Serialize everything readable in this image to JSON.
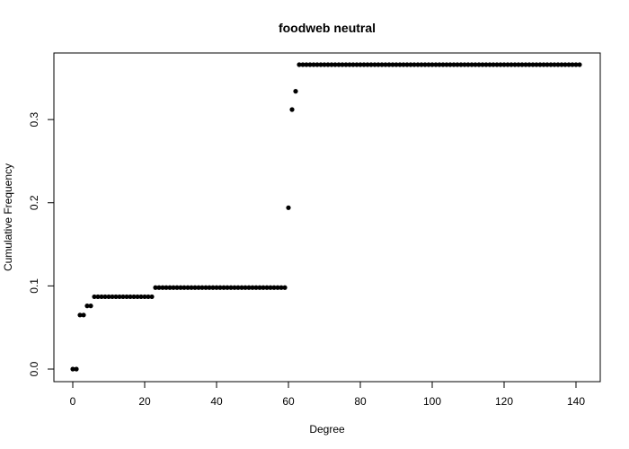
{
  "chart_data": {
    "type": "scatter",
    "title": "foodweb neutral",
    "xlabel": "Degree",
    "ylabel": "Cumulative Frequency",
    "xlim": [
      0,
      141
    ],
    "ylim": [
      0,
      0.366
    ],
    "x_ticks": [
      0,
      20,
      40,
      60,
      80,
      100,
      120,
      140
    ],
    "x_tick_labels": [
      "0",
      "20",
      "40",
      "60",
      "80",
      "100",
      "120",
      "140"
    ],
    "y_ticks": [
      0.0,
      0.1,
      0.2,
      0.3
    ],
    "y_tick_labels": [
      "0.0",
      "0.1",
      "0.2",
      "0.3"
    ],
    "grid": false,
    "point_color": "#000000",
    "series": [
      {
        "x": [
          0,
          1,
          2,
          3,
          4,
          5,
          6,
          7,
          8,
          9,
          10,
          11,
          12,
          13,
          14,
          15,
          16,
          17,
          18,
          19,
          20,
          21,
          22,
          23,
          24,
          25,
          26,
          27,
          28,
          29,
          30,
          31,
          32,
          33,
          34,
          35,
          36,
          37,
          38,
          39,
          40,
          41,
          42,
          43,
          44,
          45,
          46,
          47,
          48,
          49,
          50,
          51,
          52,
          53,
          54,
          55,
          56,
          57,
          58,
          59,
          60,
          61,
          62,
          63,
          64,
          65,
          66,
          67,
          68,
          69,
          70,
          71,
          72,
          73,
          74,
          75,
          76,
          77,
          78,
          79,
          80,
          81,
          82,
          83,
          84,
          85,
          86,
          87,
          88,
          89,
          90,
          91,
          92,
          93,
          94,
          95,
          96,
          97,
          98,
          99,
          100,
          101,
          102,
          103,
          104,
          105,
          106,
          107,
          108,
          109,
          110,
          111,
          112,
          113,
          114,
          115,
          116,
          117,
          118,
          119,
          120,
          121,
          122,
          123,
          124,
          125,
          126,
          127,
          128,
          129,
          130,
          131,
          132,
          133,
          134,
          135,
          136,
          137,
          138,
          139,
          140,
          141
        ],
        "y": [
          0,
          0,
          0.065,
          0.065,
          0.076,
          0.076,
          0.087,
          0.087,
          0.087,
          0.087,
          0.087,
          0.087,
          0.087,
          0.087,
          0.087,
          0.087,
          0.087,
          0.087,
          0.087,
          0.087,
          0.087,
          0.087,
          0.087,
          0.098,
          0.098,
          0.098,
          0.098,
          0.098,
          0.098,
          0.098,
          0.098,
          0.098,
          0.098,
          0.098,
          0.098,
          0.098,
          0.098,
          0.098,
          0.098,
          0.098,
          0.098,
          0.098,
          0.098,
          0.098,
          0.098,
          0.098,
          0.098,
          0.098,
          0.098,
          0.098,
          0.098,
          0.098,
          0.098,
          0.098,
          0.098,
          0.098,
          0.098,
          0.098,
          0.098,
          0.098,
          0.194,
          0.312,
          0.334,
          0.366,
          0.366,
          0.366,
          0.366,
          0.366,
          0.366,
          0.366,
          0.366,
          0.366,
          0.366,
          0.366,
          0.366,
          0.366,
          0.366,
          0.366,
          0.366,
          0.366,
          0.366,
          0.366,
          0.366,
          0.366,
          0.366,
          0.366,
          0.366,
          0.366,
          0.366,
          0.366,
          0.366,
          0.366,
          0.366,
          0.366,
          0.366,
          0.366,
          0.366,
          0.366,
          0.366,
          0.366,
          0.366,
          0.366,
          0.366,
          0.366,
          0.366,
          0.366,
          0.366,
          0.366,
          0.366,
          0.366,
          0.366,
          0.366,
          0.366,
          0.366,
          0.366,
          0.366,
          0.366,
          0.366,
          0.366,
          0.366,
          0.366,
          0.366,
          0.366,
          0.366,
          0.366,
          0.366,
          0.366,
          0.366,
          0.366,
          0.366,
          0.366,
          0.366,
          0.366,
          0.366,
          0.366,
          0.366,
          0.366,
          0.366,
          0.366,
          0.366,
          0.366,
          0.366
        ]
      }
    ]
  }
}
